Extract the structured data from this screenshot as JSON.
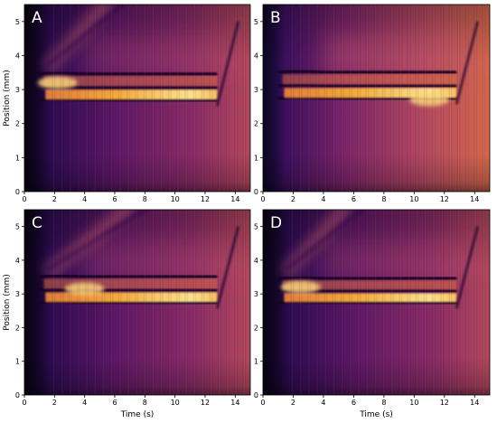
{
  "chart_data": [
    {
      "type": "heatmap",
      "panel_label": "A",
      "xlabel": "",
      "ylabel": "Position (mm)",
      "xlim": [
        0,
        15
      ],
      "ylim": [
        0,
        5.5
      ],
      "xticks": [
        "0",
        "2",
        "4",
        "6",
        "8",
        "10",
        "12",
        "14"
      ],
      "yticks": [
        "0",
        "1",
        "2",
        "3",
        "4",
        "5"
      ],
      "colormap": "inferno",
      "features": {
        "upper_band_y": 3.3,
        "lower_band_y": 2.8,
        "band_end_x": 12.8,
        "hotspot_x": 2.2,
        "hotspot_y": 3.2,
        "diagonal_streak_slope": 0.55
      }
    },
    {
      "type": "heatmap",
      "panel_label": "B",
      "xlabel": "",
      "ylabel": "",
      "xlim": [
        0,
        15
      ],
      "ylim": [
        0,
        5.5
      ],
      "xticks": [
        "0",
        "2",
        "4",
        "6",
        "8",
        "10",
        "12",
        "14"
      ],
      "yticks": [
        "0",
        "1",
        "2",
        "3",
        "4",
        "5"
      ],
      "colormap": "inferno",
      "features": {
        "upper_band_y": 3.35,
        "lower_band_y": 2.85,
        "band_end_x": 12.8,
        "hotspot_x": 11.0,
        "hotspot_y": 2.7,
        "diagonal_streak_slope": 0.0
      }
    },
    {
      "type": "heatmap",
      "panel_label": "C",
      "xlabel": "Time (s)",
      "ylabel": "Position (mm)",
      "xlim": [
        0,
        15
      ],
      "ylim": [
        0,
        5.5
      ],
      "xticks": [
        "0",
        "2",
        "4",
        "6",
        "8",
        "10",
        "12",
        "14"
      ],
      "yticks": [
        "0",
        "1",
        "2",
        "3",
        "4",
        "5"
      ],
      "colormap": "inferno",
      "features": {
        "upper_band_y": 3.35,
        "lower_band_y": 2.85,
        "band_end_x": 12.8,
        "hotspot_x": 4.0,
        "hotspot_y": 3.15,
        "diagonal_streak_slope": 0.4
      }
    },
    {
      "type": "heatmap",
      "panel_label": "D",
      "xlabel": "Time (s)",
      "ylabel": "",
      "xlim": [
        0,
        15
      ],
      "ylim": [
        0,
        5.5
      ],
      "xticks": [
        "0",
        "2",
        "4",
        "6",
        "8",
        "10",
        "12",
        "14"
      ],
      "yticks": [
        "0",
        "1",
        "2",
        "3",
        "4",
        "5"
      ],
      "colormap": "inferno",
      "features": {
        "upper_band_y": 3.3,
        "lower_band_y": 2.85,
        "band_end_x": 12.8,
        "hotspot_x": 2.5,
        "hotspot_y": 3.2,
        "diagonal_streak_slope": 0.55
      }
    }
  ]
}
